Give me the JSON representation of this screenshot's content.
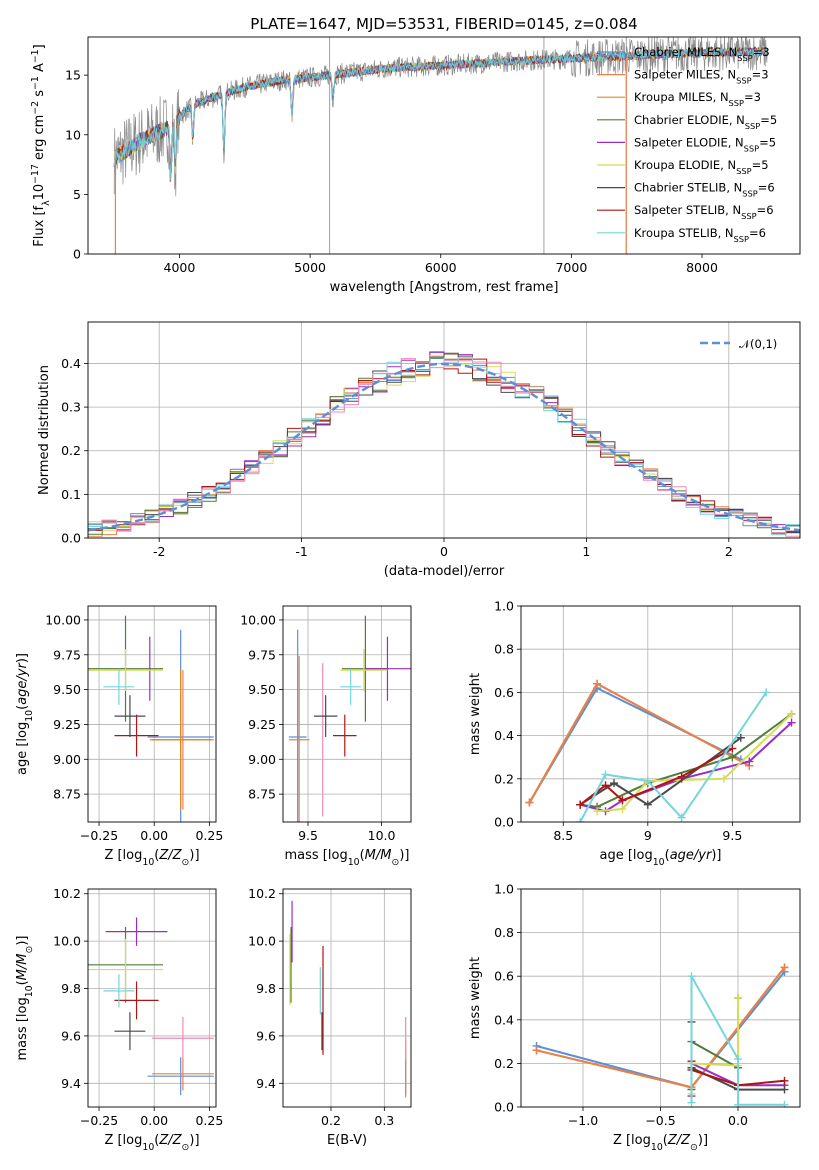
{
  "colors": [
    "#5b8fd8",
    "#e9804a",
    "#e08b1c",
    "#4f7d3a",
    "#9a2ec2",
    "#d6dd55",
    "#4a4a4a",
    "#b01515",
    "#74d6dc",
    "#8a8a8a",
    "#f08ab8"
  ],
  "chart_data": [
    {
      "type": "line",
      "title": "PLATE=1647, MJD=53531, FIBERID=0145, z=0.084",
      "xlabel": "wavelength [Angstrom, rest frame]",
      "ylabel": "Flux [f_λ10^-17 erg cm^-2 s^-1 A^-1]",
      "xlim": [
        3300,
        8750
      ],
      "ylim": [
        0,
        18.2
      ],
      "xticks": [
        4000,
        5000,
        6000,
        7000,
        8000
      ],
      "yticks": [
        0,
        5,
        10,
        15
      ],
      "grid": false,
      "legend_position": "right",
      "legend": [
        "Chabrier MILES, N_SSP=3",
        "Salpeter MILES, N_SSP=3",
        "Kroupa MILES, N_SSP=3",
        "Chabrier ELODIE, N_SSP=5",
        "Salpeter ELODIE, N_SSP=5",
        "Kroupa ELODIE, N_SSP=5",
        "Chabrier STELIB, N_SSP=6",
        "Salpeter STELIB, N_SSP=6",
        "Kroupa STELIB, N_SSP=6"
      ],
      "continuum": {
        "x": [
          3500,
          3700,
          3900,
          4100,
          4300,
          4500,
          4800,
          5000,
          5300,
          5600,
          6000,
          6300,
          6600,
          7000,
          7400,
          7800,
          8200,
          8500
        ],
        "y": [
          8,
          9.5,
          10.5,
          12.5,
          13.3,
          14.0,
          14.6,
          14.8,
          15.2,
          15.6,
          15.8,
          16.0,
          16.2,
          16.4,
          16.6,
          16.8,
          16.9,
          17.0
        ]
      },
      "absorption_features": [
        {
          "x": 3934,
          "depth": 4.5
        },
        {
          "x": 3968,
          "depth": 4
        },
        {
          "x": 4102,
          "depth": 3
        },
        {
          "x": 4340,
          "depth": 5
        },
        {
          "x": 4861,
          "depth": 3.5
        },
        {
          "x": 5175,
          "depth": 2
        }
      ]
    },
    {
      "type": "line",
      "xlabel": "(data-model)/error",
      "ylabel": "Normed distribution",
      "xlim": [
        -2.5,
        2.5
      ],
      "ylim": [
        0,
        0.495
      ],
      "xticks": [
        -2,
        -1,
        0,
        1,
        2
      ],
      "yticks": [
        0.0,
        0.1,
        0.2,
        0.3,
        0.4
      ],
      "grid": true,
      "legend_position": "top-right",
      "legend": [
        "𝒩(0,1)"
      ],
      "histogram_bin_width": 0.1,
      "histogram_jitter": [
        0.018,
        -0.011,
        0.025,
        0.006,
        -0.022,
        0.014,
        -0.004,
        0.021,
        -0.017,
        0.009,
        0.028,
        -0.026,
        0.003,
        0.016,
        -0.013,
        0.024,
        -0.008,
        0.011,
        -0.029,
        0.02,
        -0.002,
        0.027,
        -0.019,
        0.008,
        0.015,
        -0.024,
        0.005,
        -0.015,
        0.022,
        -0.006,
        0.012,
        -0.027,
        0.019,
        0.001,
        -0.02,
        0.026,
        -0.009,
        0.017,
        -0.012,
        0.023,
        -0.003,
        0.01,
        -0.025,
        0.013,
        0.029,
        -0.016,
        0.004,
        -0.021,
        0.018,
        -0.007,
        0.025,
        -0.014,
        0.007,
        -0.028,
        0.016,
        0.002,
        -0.018,
        0.021,
        -0.01,
        0.014
      ]
    },
    {
      "type": "scatter",
      "xlabel": "Z [log10(Z/Z☉)]",
      "ylabel": "age  [log10(age/yr)]",
      "xlim": [
        -0.3,
        0.28
      ],
      "ylim": [
        8.55,
        10.1
      ],
      "xticks": [
        -0.25,
        0.0,
        0.25
      ],
      "xticklabels": [
        "−0.25",
        "0.00",
        "0.25"
      ],
      "yticks": [
        8.75,
        9.0,
        9.25,
        9.5,
        9.75,
        10.0
      ],
      "yticklabels": [
        "8.75",
        "9.00",
        "9.25",
        "9.50",
        "9.75",
        "10.00"
      ],
      "grid": true,
      "points": [
        {
          "c": 0,
          "x": 0.12,
          "y": 9.16,
          "xerr": 0.15,
          "yerr": 0.77
        },
        {
          "c": 1,
          "x": 0.13,
          "y": 9.14,
          "xerr": 0.14,
          "yerr": 0.5
        },
        {
          "c": 2,
          "x": 0.12,
          "y": 9.14,
          "xerr": 0.14,
          "yerr": 0.5
        },
        {
          "c": 3,
          "x": -0.13,
          "y": 9.65,
          "xerr": 0.17,
          "yerr": 0.38
        },
        {
          "c": 4,
          "x": -0.02,
          "y": 9.65,
          "xerr": 0.0,
          "yerr": 0.23
        },
        {
          "c": 5,
          "x": -0.13,
          "y": 9.64,
          "xerr": 0.17,
          "yerr": 0.15
        },
        {
          "c": 6,
          "x": -0.11,
          "y": 9.31,
          "xerr": 0.07,
          "yerr": 0.15
        },
        {
          "c": 7,
          "x": -0.08,
          "y": 9.17,
          "xerr": 0.1,
          "yerr": 0.15
        },
        {
          "c": 8,
          "x": -0.16,
          "y": 9.52,
          "xerr": 0.07,
          "yerr": 0.13
        }
      ]
    },
    {
      "type": "scatter",
      "xlabel": "mass [log10(M/M☉)]",
      "ylabel": "",
      "xlim": [
        9.33,
        10.2
      ],
      "ylim": [
        8.55,
        10.1
      ],
      "xticks": [
        9.5,
        10.0
      ],
      "xticklabels": [
        "9.5",
        "10.0"
      ],
      "yticks": [
        8.75,
        9.0,
        9.25,
        9.5,
        9.75,
        10.0
      ],
      "yticklabels": [
        "8.75",
        "9.00",
        "9.25",
        "9.50",
        "9.75",
        "10.00"
      ],
      "grid": true,
      "points": [
        {
          "c": 0,
          "x": 9.43,
          "y": 9.16,
          "xerr": 0.06,
          "yerr": 0.77
        },
        {
          "c": 1,
          "x": 9.44,
          "y": 9.14,
          "xerr": 0.07,
          "yerr": 0.6
        },
        {
          "c": 10,
          "x": 9.6,
          "y": 9.14,
          "xerr": 0.0,
          "yerr": 0.55
        },
        {
          "c": 3,
          "x": 9.89,
          "y": 9.65,
          "xerr": 0.16,
          "yerr": 0.38
        },
        {
          "c": 4,
          "x": 10.04,
          "y": 9.65,
          "xerr": 0.16,
          "yerr": 0.23
        },
        {
          "c": 5,
          "x": 9.88,
          "y": 9.64,
          "xerr": 0.16,
          "yerr": 0.15
        },
        {
          "c": 6,
          "x": 9.62,
          "y": 9.31,
          "xerr": 0.08,
          "yerr": 0.15
        },
        {
          "c": 7,
          "x": 9.75,
          "y": 9.17,
          "xerr": 0.08,
          "yerr": 0.15
        },
        {
          "c": 8,
          "x": 9.79,
          "y": 9.52,
          "xerr": 0.07,
          "yerr": 0.13
        }
      ]
    },
    {
      "type": "line",
      "xlabel": "age  [log10(age/yr)]",
      "ylabel": "mass weight",
      "xlim": [
        8.25,
        9.9
      ],
      "ylim": [
        0,
        1.0
      ],
      "xticks": [
        8.5,
        9.0,
        9.5
      ],
      "yticks": [
        0.0,
        0.2,
        0.4,
        0.6,
        0.8,
        1.0
      ],
      "grid": true,
      "series": [
        {
          "c": 0,
          "x": [
            8.3,
            8.7,
            9.55
          ],
          "y": [
            0.09,
            0.62,
            0.29
          ]
        },
        {
          "c": 2,
          "x": [
            8.3,
            8.7,
            9.6
          ],
          "y": [
            0.09,
            0.64,
            0.26
          ]
        },
        {
          "c": 1,
          "x": [
            8.3,
            8.7,
            9.6
          ],
          "y": [
            0.09,
            0.64,
            0.26
          ]
        },
        {
          "c": 3,
          "x": [
            8.6,
            8.7,
            9.0,
            9.5,
            9.85
          ],
          "y": [
            0.08,
            0.07,
            0.18,
            0.3,
            0.5
          ]
        },
        {
          "c": 4,
          "x": [
            8.6,
            8.75,
            8.85,
            9.2,
            9.6,
            9.85
          ],
          "y": [
            0.08,
            0.05,
            0.1,
            0.2,
            0.28,
            0.46
          ]
        },
        {
          "c": 5,
          "x": [
            8.7,
            8.85,
            9.0,
            9.45,
            9.85
          ],
          "y": [
            0.05,
            0.06,
            0.19,
            0.2,
            0.5
          ]
        },
        {
          "c": 6,
          "x": [
            8.6,
            8.8,
            9.0,
            9.55
          ],
          "y": [
            0.08,
            0.18,
            0.08,
            0.39
          ]
        },
        {
          "c": 7,
          "x": [
            8.6,
            8.75,
            8.85,
            9.2,
            9.5
          ],
          "y": [
            0.08,
            0.17,
            0.1,
            0.21,
            0.34
          ]
        },
        {
          "c": 8,
          "x": [
            8.6,
            8.75,
            9.0,
            9.2,
            9.7
          ],
          "y": [
            0.0,
            0.22,
            0.19,
            0.02,
            0.6
          ]
        }
      ]
    },
    {
      "type": "scatter",
      "xlabel": "Z [log10(Z/Z☉)]",
      "ylabel": "mass [log10(M/M☉)]",
      "xlim": [
        -0.3,
        0.28
      ],
      "ylim": [
        9.3,
        10.22
      ],
      "xticks": [
        -0.25,
        0.0,
        0.25
      ],
      "xticklabels": [
        "−0.25",
        "0.00",
        "0.25"
      ],
      "yticks": [
        9.4,
        9.6,
        9.8,
        10.0,
        10.2
      ],
      "yticklabels": [
        "9.4",
        "9.6",
        "9.8",
        "10.0",
        "10.2"
      ],
      "grid": true,
      "points": [
        {
          "c": 0,
          "x": 0.12,
          "y": 9.43,
          "xerr": 0.15,
          "yerr": 0.08
        },
        {
          "c": 1,
          "x": 0.13,
          "y": 9.44,
          "xerr": 0.14,
          "yerr": 0.07
        },
        {
          "c": 10,
          "x": 0.13,
          "y": 9.59,
          "xerr": 0.14,
          "yerr": 0.09
        },
        {
          "c": 3,
          "x": -0.13,
          "y": 9.9,
          "xerr": 0.17,
          "yerr": 0.16
        },
        {
          "c": 4,
          "x": -0.08,
          "y": 10.04,
          "xerr": 0.14,
          "yerr": 0.06
        },
        {
          "c": 5,
          "x": -0.13,
          "y": 9.88,
          "xerr": 0.17,
          "yerr": 0.13
        },
        {
          "c": 6,
          "x": -0.11,
          "y": 9.62,
          "xerr": 0.07,
          "yerr": 0.08
        },
        {
          "c": 7,
          "x": -0.08,
          "y": 9.75,
          "xerr": 0.1,
          "yerr": 0.08
        },
        {
          "c": 8,
          "x": -0.16,
          "y": 9.79,
          "xerr": 0.07,
          "yerr": 0.07
        }
      ]
    },
    {
      "type": "scatter",
      "xlabel": "E(B-V)",
      "ylabel": "",
      "xlim": [
        0.11,
        0.35
      ],
      "ylim": [
        9.3,
        10.22
      ],
      "xticks": [
        0.2,
        0.3
      ],
      "xticklabels": [
        "0.2",
        "0.3"
      ],
      "yticks": [
        9.4,
        9.6,
        9.8,
        10.0,
        10.2
      ],
      "yticklabels": [
        "9.4",
        "9.6",
        "9.8",
        "10.0",
        "10.2"
      ],
      "grid": true,
      "points": [
        {
          "c": 0,
          "x": 0.34,
          "y": 9.43,
          "xerr": 0,
          "yerr": 0.08
        },
        {
          "c": 1,
          "x": 0.34,
          "y": 9.46,
          "xerr": 0,
          "yerr": 0.12
        },
        {
          "c": 10,
          "x": 0.34,
          "y": 9.59,
          "xerr": 0,
          "yerr": 0.09
        },
        {
          "c": 3,
          "x": 0.125,
          "y": 9.9,
          "xerr": 0,
          "yerr": 0.16
        },
        {
          "c": 4,
          "x": 0.127,
          "y": 10.04,
          "xerr": 0,
          "yerr": 0.13
        },
        {
          "c": 5,
          "x": 0.123,
          "y": 9.88,
          "xerr": 0,
          "yerr": 0.15
        },
        {
          "c": 6,
          "x": 0.183,
          "y": 9.62,
          "xerr": 0,
          "yerr": 0.08
        },
        {
          "c": 7,
          "x": 0.185,
          "y": 9.75,
          "xerr": 0,
          "yerr": 0.23
        },
        {
          "c": 8,
          "x": 0.18,
          "y": 9.79,
          "xerr": 0,
          "yerr": 0.1
        }
      ]
    },
    {
      "type": "line",
      "xlabel": "Z [log10(Z/Z☉)]",
      "ylabel": "mass weight",
      "xlim": [
        -1.4,
        0.4
      ],
      "ylim": [
        0,
        1.0
      ],
      "xticks": [
        -1.0,
        -0.5,
        0.0
      ],
      "xticklabels": [
        "−1.0",
        "−0.5",
        "0.0"
      ],
      "yticks": [
        0.0,
        0.2,
        0.4,
        0.6,
        0.8,
        1.0
      ],
      "grid": true,
      "series": [
        {
          "c": 0,
          "x": [
            -1.3,
            -0.3,
            0.3
          ],
          "y": [
            0.28,
            0.09,
            0.62
          ]
        },
        {
          "c": 2,
          "x": [
            -1.3,
            -0.3,
            0.3
          ],
          "y": [
            0.26,
            0.09,
            0.64
          ]
        },
        {
          "c": 1,
          "x": [
            -1.3,
            -0.3,
            0.3
          ],
          "y": [
            0.26,
            0.09,
            0.64
          ]
        },
        {
          "c": 3,
          "x": [
            -0.3,
            -0.3,
            0.0,
            0.0
          ],
          "y": [
            0.08,
            0.3,
            0.18,
            0.5
          ]
        },
        {
          "c": 4,
          "x": [
            -0.3,
            -0.3,
            0.0,
            0.3
          ],
          "y": [
            0.05,
            0.2,
            0.1,
            0.1
          ]
        },
        {
          "c": 5,
          "x": [
            -0.3,
            -0.3,
            0.0,
            0.0
          ],
          "y": [
            0.06,
            0.2,
            0.19,
            0.5
          ]
        },
        {
          "c": 6,
          "x": [
            -0.3,
            -0.3,
            0.0,
            0.3
          ],
          "y": [
            0.39,
            0.18,
            0.08,
            0.08
          ]
        },
        {
          "c": 7,
          "x": [
            -0.3,
            -0.3,
            0.0,
            0.3
          ],
          "y": [
            0.21,
            0.17,
            0.1,
            0.12
          ]
        },
        {
          "c": 8,
          "x": [
            -0.3,
            -0.3,
            0.0,
            0.0,
            0.3
          ],
          "y": [
            0.02,
            0.6,
            0.22,
            0.01,
            0.01
          ]
        }
      ]
    }
  ]
}
